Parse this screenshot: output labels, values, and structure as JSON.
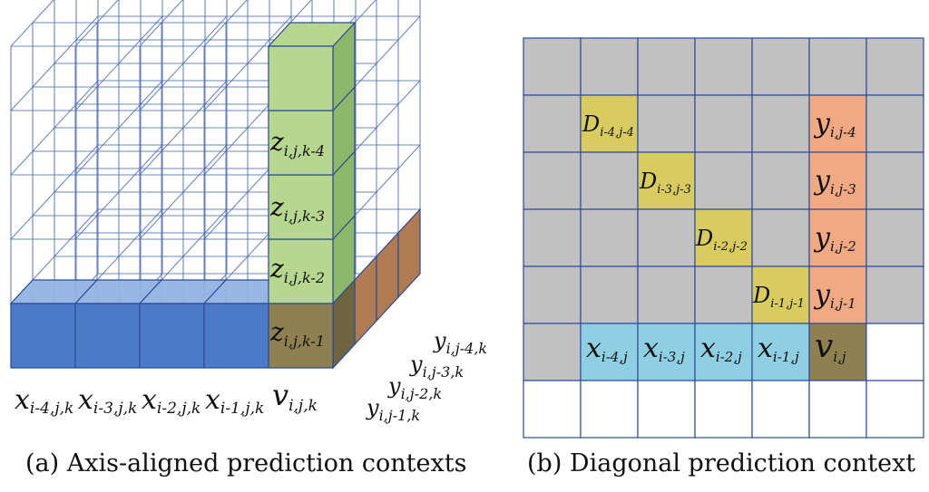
{
  "panel_a": {
    "caption": "(a)  Axis-aligned prediction contexts",
    "x_labels": [
      "x",
      "x",
      "x",
      "x"
    ],
    "x_subs": [
      "i-4,j,k",
      "i-3,j,k",
      "i-2,j,k",
      "i-1,j,k"
    ],
    "z_labels": [
      "z",
      "z",
      "z",
      "z"
    ],
    "z_subs": [
      "i,j,k-4",
      "i,j,k-3",
      "i,j,k-2",
      "i,j,k-1"
    ],
    "y_labels": [
      "y",
      "y",
      "y",
      "y"
    ],
    "y_subs": [
      "i,j-4,k",
      "i,j-3,k",
      "i,j-2,k",
      "i,j-1,k"
    ],
    "v_label": "v",
    "v_sub": "i,j,k"
  },
  "panel_b": {
    "caption": "(b)  Diagonal prediction context",
    "d_labels": [
      "D",
      "D",
      "D",
      "D"
    ],
    "d_subs": [
      "i-4,j-4",
      "i-3,j-3",
      "i-2,j-2",
      "i-1,j-1"
    ],
    "y_labels": [
      "y",
      "y",
      "y",
      "y"
    ],
    "y_subs": [
      "i,j-4",
      "i,j-3",
      "i,j-2",
      "i,j-1"
    ],
    "x_labels": [
      "x",
      "x",
      "x",
      "x"
    ],
    "x_subs": [
      "i-4,j",
      "i-3,j",
      "i-2,j",
      "i-1,j"
    ],
    "v_label": "v",
    "v_sub": "i,j"
  },
  "colors": {
    "blue_front": "#4a7ac8",
    "blue_top": "#93b3e3",
    "green": "#b7d690",
    "green_side": "#8db86a",
    "olive": "#8f8052",
    "brown": "#b07b52",
    "gray": "#c1c1c1",
    "yellow": "#d8cc60",
    "orange": "#f0a983",
    "cyan": "#8fcfe3",
    "grid_line": "#2c4c96",
    "cube_line": "#4a6ab0"
  }
}
